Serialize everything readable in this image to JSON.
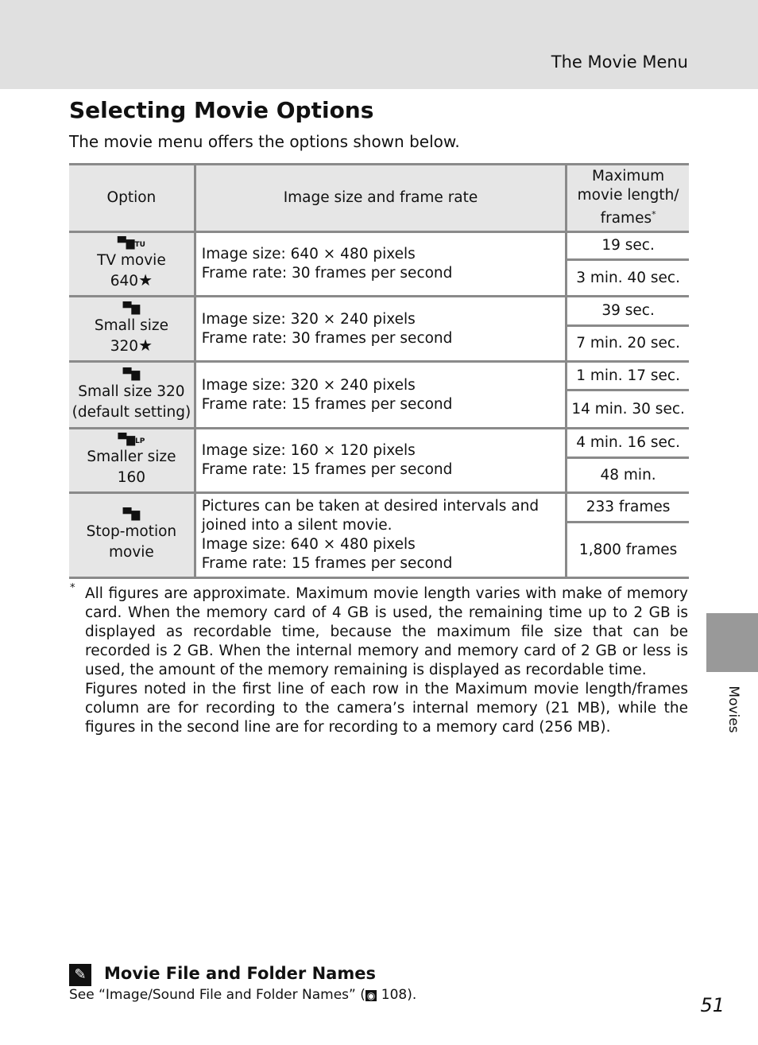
{
  "header": {
    "section": "The Movie Menu"
  },
  "title": "Selecting Movie Options",
  "intro": "The movie menu offers the options shown below.",
  "table": {
    "headers": [
      "Option",
      "Image size and frame rate",
      "Maximum movie length/ frames"
    ],
    "header_mark": "*",
    "rows": [
      {
        "icon": "tv-movie-icon",
        "icon_text": "TU",
        "name_l1": "TV movie",
        "name_l2": "640",
        "star": "★",
        "desc": [
          "Image size: 640 × 480 pixels",
          "Frame rate: 30 frames per second"
        ],
        "internal": "19 sec.",
        "card": "3 min. 40 sec."
      },
      {
        "icon": "small-size-star-icon",
        "icon_text": "",
        "name_l1": "Small size",
        "name_l2": "320",
        "star": "★",
        "desc": [
          "Image size: 320 × 240 pixels",
          "Frame rate: 30 frames per second"
        ],
        "internal": "39 sec.",
        "card": "7 min. 20 sec."
      },
      {
        "icon": "small-size-icon",
        "icon_text": "",
        "name_l1": "Small size 320",
        "name_l2": "(default setting)",
        "star": "",
        "desc": [
          "Image size: 320 × 240 pixels",
          "Frame rate: 15 frames per second"
        ],
        "internal": "1 min. 17 sec.",
        "card": "14 min. 30 sec."
      },
      {
        "icon": "smaller-size-icon",
        "icon_text": "LP",
        "name_l1": "Smaller size",
        "name_l2": "160",
        "star": "",
        "desc": [
          "Image size: 160 × 120 pixels",
          "Frame rate: 15 frames per second"
        ],
        "internal": "4 min. 16 sec.",
        "card": "48 min."
      },
      {
        "icon": "stop-motion-icon",
        "icon_text": "",
        "name_l1": "Stop-motion",
        "name_l2": "movie",
        "star": "",
        "desc": [
          "Pictures can be taken at desired intervals and",
          "joined into a silent movie.",
          "Image size: 640 × 480 pixels",
          "Frame rate: 15 frames per second"
        ],
        "internal": "233 frames",
        "card": "1,800 frames"
      }
    ]
  },
  "footnote": {
    "mark": "*",
    "p1": "All figures are approximate. Maximum movie length varies with make of memory card. When the memory card of 4 GB is used, the remaining time up to 2 GB is displayed as recordable time, because the maximum file size that can be recorded is 2 GB. When the internal memory and memory card of 2 GB or less is used, the amount of the memory remaining is displayed as recordable time.",
    "p2": "Figures noted in the first line of each row in the Maximum movie length/frames column are for recording to the camera’s internal memory (21 MB), while the figures in the second line are for recording to a memory card (256 MB)."
  },
  "side_tab": "Movies",
  "tip": {
    "title": "Movie File and Folder Names",
    "text_before": "See “Image/Sound File and Folder Names” (",
    "ref_page": "108",
    "text_after": ")."
  },
  "page_number": "51"
}
